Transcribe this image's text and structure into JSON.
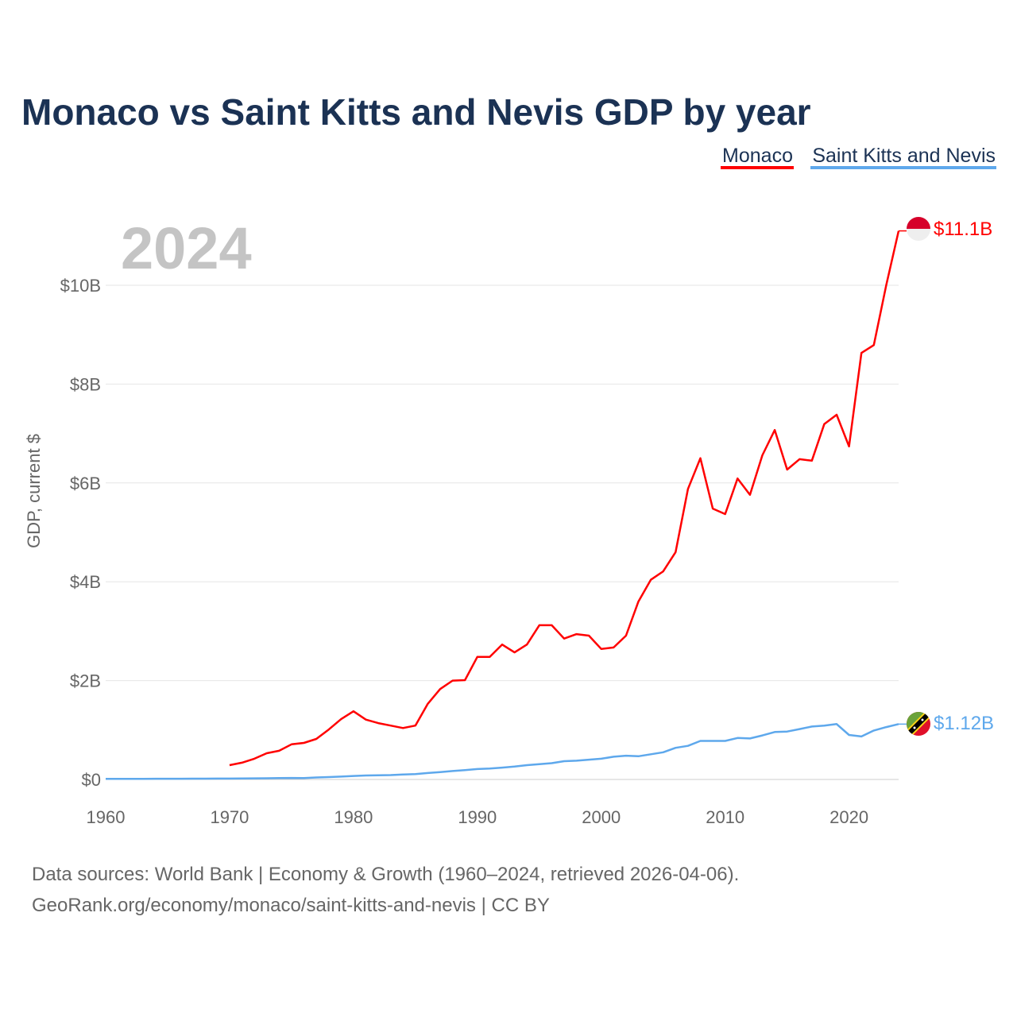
{
  "colors": {
    "monaco": "#ff0000",
    "skn": "#5ea8ec",
    "grid": "#e6e6e6",
    "title": "#1b3254"
  },
  "chart_data": {
    "type": "line",
    "title": "Monaco vs Saint Kitts and Nevis GDP by year",
    "xlabel": "",
    "ylabel": "GDP, current $",
    "year_label": "2024",
    "xlim": [
      1960,
      2024
    ],
    "ylim": [
      0,
      11.1
    ],
    "grid": true,
    "legend_placement": "top-right",
    "x_ticks": [
      1960,
      1970,
      1980,
      1990,
      2000,
      2010,
      2020
    ],
    "x_tick_labels": [
      "1960",
      "1970",
      "1980",
      "1990",
      "2000",
      "2010",
      "2020"
    ],
    "y_ticks": [
      0,
      2,
      4,
      6,
      8,
      10
    ],
    "y_tick_labels": [
      "$0",
      "$2B",
      "$4B",
      "$6B",
      "$8B",
      "$10B"
    ],
    "series": [
      {
        "name": "Monaco",
        "unit": "billion USD",
        "end_label": "$11.1B",
        "x_start": 1970,
        "values": [
          0.29,
          0.34,
          0.42,
          0.53,
          0.58,
          0.71,
          0.74,
          0.82,
          1.01,
          1.22,
          1.38,
          1.21,
          1.14,
          1.09,
          1.04,
          1.09,
          1.53,
          1.83,
          2.0,
          2.01,
          2.48,
          2.48,
          2.73,
          2.57,
          2.73,
          3.12,
          3.12,
          2.85,
          2.94,
          2.91,
          2.64,
          2.67,
          2.91,
          3.6,
          4.04,
          4.21,
          4.6,
          5.88,
          6.5,
          5.48,
          5.37,
          6.09,
          5.76,
          6.56,
          7.07,
          6.27,
          6.48,
          6.45,
          7.19,
          7.38,
          6.74,
          8.63,
          8.79,
          10.0,
          11.1
        ]
      },
      {
        "name": "Saint Kitts and Nevis",
        "unit": "billion USD",
        "end_label": "$1.12B",
        "x_start": 1960,
        "values": [
          0.012,
          0.012,
          0.013,
          0.013,
          0.014,
          0.014,
          0.015,
          0.016,
          0.016,
          0.017,
          0.018,
          0.02,
          0.022,
          0.024,
          0.028,
          0.03,
          0.028,
          0.04,
          0.048,
          0.058,
          0.07,
          0.08,
          0.085,
          0.088,
          0.1,
          0.11,
          0.13,
          0.15,
          0.17,
          0.19,
          0.21,
          0.22,
          0.24,
          0.26,
          0.29,
          0.31,
          0.33,
          0.37,
          0.38,
          0.4,
          0.42,
          0.46,
          0.48,
          0.47,
          0.51,
          0.55,
          0.64,
          0.68,
          0.78,
          0.78,
          0.78,
          0.84,
          0.83,
          0.89,
          0.96,
          0.97,
          1.02,
          1.07,
          1.09,
          1.12,
          0.9,
          0.87,
          0.99,
          1.06,
          1.12
        ]
      }
    ]
  },
  "footer": {
    "line1": "Data sources: World Bank | Economy & Growth (1960–2024, retrieved 2026-04-06).",
    "line2": "GeoRank.org/economy/monaco/saint-kitts-and-nevis | CC BY"
  }
}
